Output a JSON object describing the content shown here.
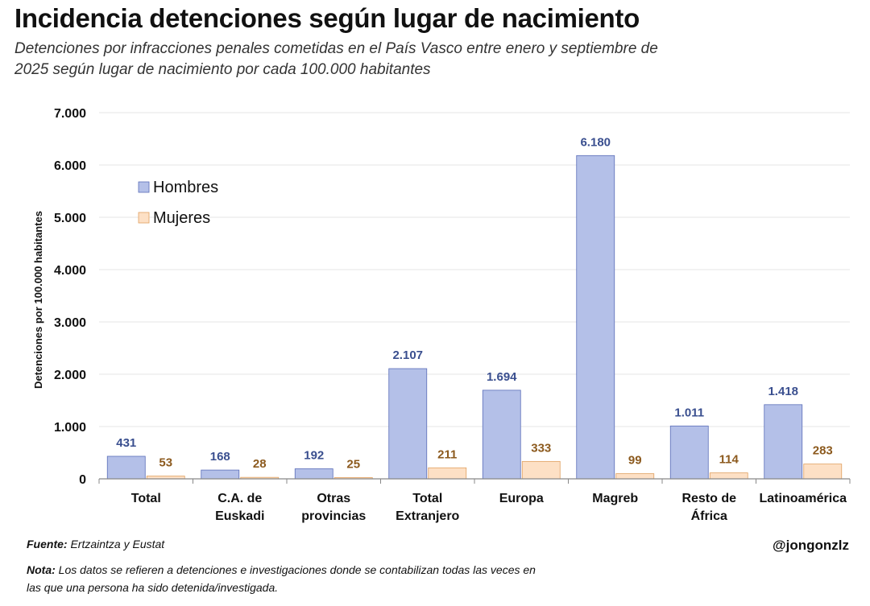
{
  "header": {
    "title": "Incidencia detenciones según lugar de nacimiento",
    "subtitle": "Detenciones por infracciones penales cometidas en el País Vasco entre enero y septiembre de 2025 según lugar de nacimiento por cada 100.000 habitantes"
  },
  "chart_data": {
    "type": "bar",
    "ylabel": "Detenciones por 100.000 habitantes",
    "ylim": [
      0,
      7000
    ],
    "yticks": [
      "0",
      "1.000",
      "2.000",
      "3.000",
      "4.000",
      "5.000",
      "6.000",
      "7.000"
    ],
    "grid": true,
    "legend_position": "top-left",
    "categories": [
      [
        "Total"
      ],
      [
        "C.A. de",
        "Euskadi"
      ],
      [
        "Otras",
        "provincias"
      ],
      [
        "Total",
        "Extranjero"
      ],
      [
        "Europa"
      ],
      [
        "Magreb"
      ],
      [
        "Resto de",
        "África"
      ],
      [
        "Latinoamérica"
      ]
    ],
    "series": [
      {
        "name": "Hombres",
        "color": "#b4c0e8",
        "label_color": "#3a4f8f",
        "values": [
          431,
          168,
          192,
          2107,
          1694,
          6180,
          1011,
          1418
        ],
        "labels": [
          "431",
          "168",
          "192",
          "2.107",
          "1.694",
          "6.180",
          "1.011",
          "1.418"
        ]
      },
      {
        "name": "Mujeres",
        "color": "#fde0c5",
        "label_color": "#8c5a1e",
        "values": [
          53,
          28,
          25,
          211,
          333,
          99,
          114,
          283
        ],
        "labels": [
          "53",
          "28",
          "25",
          "211",
          "333",
          "99",
          "114",
          "283"
        ]
      }
    ]
  },
  "footer": {
    "source_label": "Fuente:",
    "source_text": "Ertzaintza y Eustat",
    "note_label": "Nota:",
    "note_text": "Los datos se refieren a detenciones e investigaciones donde se contabilizan todas las veces en las que una persona ha sido detenida/investigada.",
    "handle": "@jongonzlz"
  }
}
